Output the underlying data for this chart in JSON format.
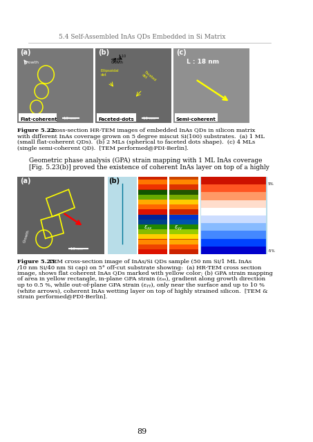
{
  "page_header": "5.4 Self-Assembled InAs QDs Embedded in Si Matrix",
  "page_number": "89",
  "fig522_caption_bold": "Figure 5.22:",
  "fig522_caption_normal": " Cross-section HR-TEM images of embedded InAs QDs in silicon matrix\nwith different InAs coverage grown on 5 degree miscut Si(100) substrates.  (a) 1 ML\n(small flat-coherent QDs).  (b) 2 MLs (spherical to faceted dots shape).  (c) 4 MLs\n(single semi-coherent QD).  [TEM performed@PDI-Berlin].",
  "fig523_caption_bold": "Figure 5.23:",
  "fig523_caption_normal": " TEM cross-section image of InAs/Si QDs sample (50 nm Si/1 ML InAs\n/10 nm Si/40 nm Si cap) on 5° off-cut substrate showing:  (a) HR-TEM cross section\nimage, shows flat coherent InAs QDs marked with yellow color; (b) GPA strain mapping\nof area in yellow rectangle, in-plane GPA strain (εxx), gradient along growth direction\nup to 0.5 %, while out-of-plane GPA strain (εyy), only near the surface and up to 10 %\n(white arrows), coherent InAs wetting layer on top of highly strained silicon.  [TEM &\nstrain performed@PDI-Berlin].",
  "body_text_lines": [
    "Geometric phase analysis (GPA) strain mapping with 1 ML InAs coverage",
    "[Fig. 5.23(b)] proved the existence of coherent InAs layer on top of a highly"
  ],
  "background_color": "#ffffff",
  "text_color": "#000000",
  "header_color": "#555555"
}
